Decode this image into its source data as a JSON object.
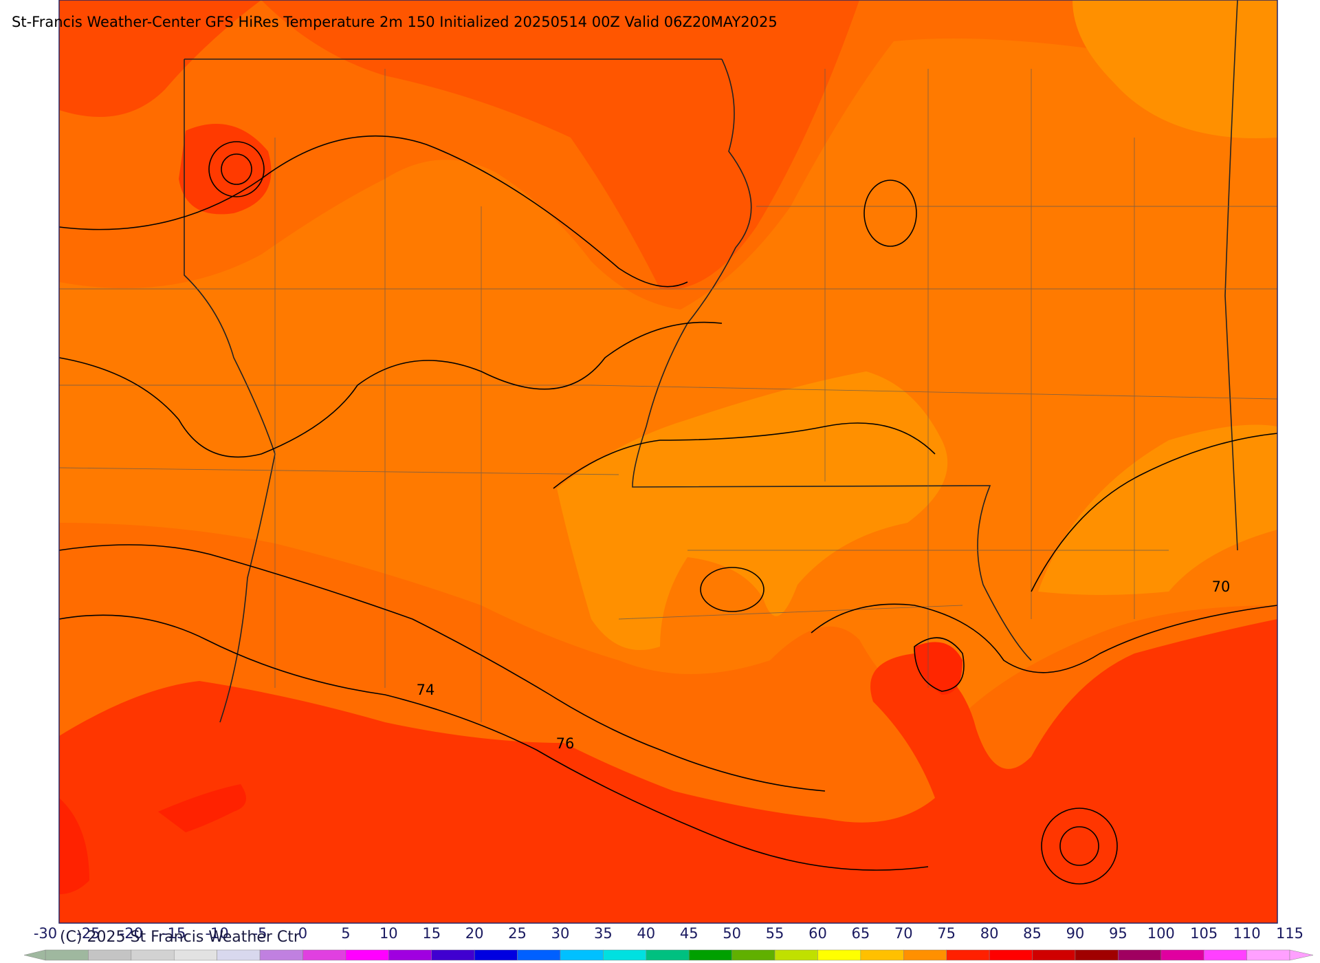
{
  "title": "St-Francis Weather-Center GFS HiRes Temperature 2m  150 Initialized 20250514 00Z Valid 06Z20MAY2025",
  "copyright": "(C) 2025 St Francis Weather Ctr",
  "contour_labels": [
    "70",
    "74",
    "76"
  ],
  "colorbar": {
    "ticks": [
      -30,
      -25,
      -20,
      -15,
      -10,
      -5,
      0,
      5,
      10,
      15,
      20,
      25,
      30,
      35,
      40,
      45,
      50,
      55,
      60,
      65,
      70,
      75,
      80,
      85,
      90,
      95,
      100,
      105,
      110,
      115
    ],
    "colors": [
      "#9fb89f",
      "#c4c4c4",
      "#d2d2d2",
      "#e2e2e2",
      "#d8d8ee",
      "#c080e0",
      "#e040e0",
      "#ff00ff",
      "#a000e0",
      "#4000d0",
      "#0000e0",
      "#0060ff",
      "#00c0ff",
      "#00e0e0",
      "#00c080",
      "#00a000",
      "#60b000",
      "#c0e000",
      "#ffff00",
      "#ffc000",
      "#ff9000",
      "#ff2000",
      "#ff0000",
      "#d00000",
      "#a00000",
      "#a00060",
      "#e000a0",
      "#ff40ff",
      "#ffa0ff"
    ]
  }
}
